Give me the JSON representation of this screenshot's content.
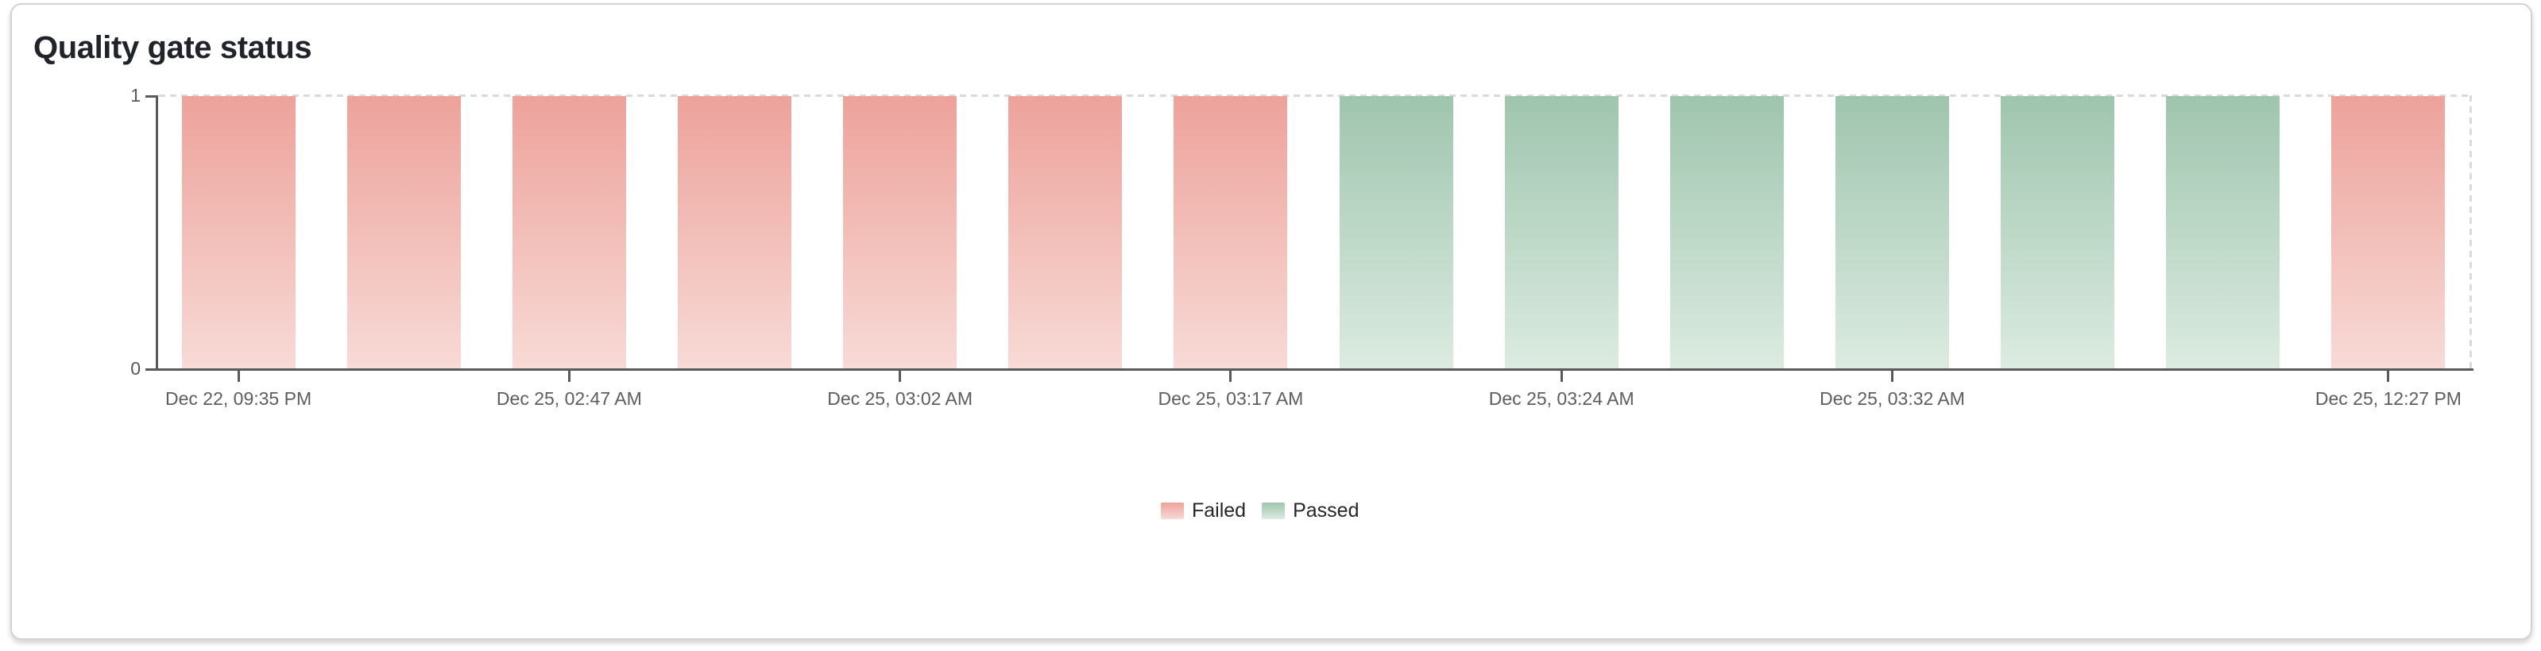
{
  "card": {
    "title": "Quality gate status"
  },
  "chart_data": {
    "type": "bar",
    "title": "Quality gate status",
    "ylabel": "",
    "xlabel": "",
    "ylim": [
      0,
      1
    ],
    "y_ticks": [
      "0",
      "1"
    ],
    "grid": "dashed horizontal line at y=1, dashed vertical line at right plot boundary",
    "legend_position": "bottom-center",
    "bar_count": 14,
    "bar_values": [
      1,
      1,
      1,
      1,
      1,
      1,
      1,
      1,
      1,
      1,
      1,
      1,
      1,
      1
    ],
    "bar_statuses": [
      "Failed",
      "Failed",
      "Failed",
      "Failed",
      "Failed",
      "Failed",
      "Failed",
      "Passed",
      "Passed",
      "Passed",
      "Passed",
      "Passed",
      "Passed",
      "Failed"
    ],
    "x_tick_labels": [
      {
        "label": "Dec 22, 09:35 PM",
        "bar_index": 0
      },
      {
        "label": "Dec 25, 02:47 AM",
        "bar_index": 2
      },
      {
        "label": "Dec 25, 03:02 AM",
        "bar_index": 4
      },
      {
        "label": "Dec 25, 03:17 AM",
        "bar_index": 6
      },
      {
        "label": "Dec 25, 03:24 AM",
        "bar_index": 8
      },
      {
        "label": "Dec 25, 03:32 AM",
        "bar_index": 10
      },
      {
        "label": "Dec 25, 12:27 PM",
        "bar_index": 13
      }
    ],
    "legend": [
      {
        "label": "Failed",
        "status": "failed"
      },
      {
        "label": "Passed",
        "status": "passed"
      }
    ],
    "colors": {
      "failed_top": "#eda29b",
      "failed_bottom": "#f8dad6",
      "passed_top": "#9fc5ae",
      "passed_bottom": "#dcebe1",
      "axis": "#5a5a5a",
      "gridline": "#dadada"
    }
  }
}
